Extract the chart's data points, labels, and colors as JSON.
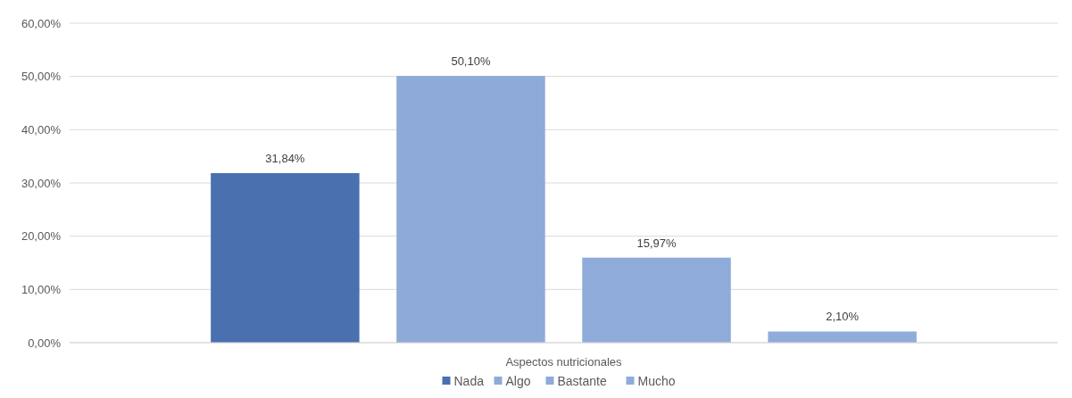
{
  "chart_data": {
    "type": "bar",
    "categories": [
      "Aspectos nutricionales"
    ],
    "series": [
      {
        "name": "Nada",
        "color": "#4a70b0",
        "values": [
          31.84
        ],
        "value_labels": [
          "31,84%"
        ]
      },
      {
        "name": "Algo",
        "color": "#8eaad8",
        "values": [
          50.1
        ],
        "value_labels": [
          "50,10%"
        ]
      },
      {
        "name": "Bastante",
        "color": "#8fabd9",
        "values": [
          15.97
        ],
        "value_labels": [
          "15,97%"
        ]
      },
      {
        "name": "Mucho",
        "color": "#90acda",
        "values": [
          2.1
        ],
        "value_labels": [
          "2,10%"
        ]
      }
    ],
    "ylim": [
      0,
      60
    ],
    "yticks": [
      {
        "value": 0,
        "label": "0,00%"
      },
      {
        "value": 10,
        "label": "10,00%"
      },
      {
        "value": 20,
        "label": "20,00%"
      },
      {
        "value": 30,
        "label": "30,00%"
      },
      {
        "value": 40,
        "label": "40,00%"
      },
      {
        "value": 50,
        "label": "50,00%"
      },
      {
        "value": 60,
        "label": "60,00%"
      }
    ],
    "grid": "y",
    "legend": "bottom"
  }
}
